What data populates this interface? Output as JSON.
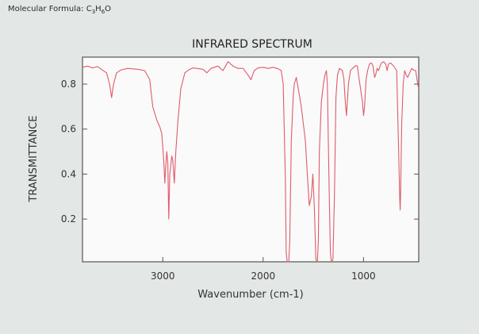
{
  "header": {
    "formula_prefix": "Molecular Formula: C",
    "c_count": "3",
    "h_mid": "H",
    "h_count": "6",
    "o_suffix": "O"
  },
  "chart_data": {
    "type": "line",
    "title": "INFRARED SPECTRUM",
    "xlabel": "Wavenumber (cm-1)",
    "ylabel": "TRANSMITTANCE",
    "xlim": [
      3800,
      450
    ],
    "ylim": [
      0.01,
      0.92
    ],
    "xticks": [
      3000,
      2000,
      1000
    ],
    "yticks": [
      0.2,
      0.4,
      0.6,
      0.8
    ],
    "grid": false,
    "series": [
      {
        "color": "#e05a6a",
        "points": [
          [
            3800,
            0.875
          ],
          [
            3750,
            0.88
          ],
          [
            3700,
            0.872
          ],
          [
            3650,
            0.878
          ],
          [
            3600,
            0.862
          ],
          [
            3560,
            0.85
          ],
          [
            3530,
            0.8
          ],
          [
            3510,
            0.74
          ],
          [
            3490,
            0.8
          ],
          [
            3460,
            0.85
          ],
          [
            3420,
            0.862
          ],
          [
            3350,
            0.87
          ],
          [
            3250,
            0.866
          ],
          [
            3180,
            0.86
          ],
          [
            3130,
            0.82
          ],
          [
            3100,
            0.7
          ],
          [
            3060,
            0.64
          ],
          [
            3030,
            0.61
          ],
          [
            3010,
            0.58
          ],
          [
            2990,
            0.46
          ],
          [
            2980,
            0.36
          ],
          [
            2970,
            0.44
          ],
          [
            2960,
            0.5
          ],
          [
            2950,
            0.45
          ],
          [
            2940,
            0.2
          ],
          [
            2930,
            0.4
          ],
          [
            2910,
            0.48
          ],
          [
            2900,
            0.46
          ],
          [
            2885,
            0.36
          ],
          [
            2870,
            0.5
          ],
          [
            2850,
            0.63
          ],
          [
            2820,
            0.78
          ],
          [
            2780,
            0.85
          ],
          [
            2740,
            0.864
          ],
          [
            2700,
            0.872
          ],
          [
            2600,
            0.866
          ],
          [
            2560,
            0.85
          ],
          [
            2520,
            0.87
          ],
          [
            2450,
            0.88
          ],
          [
            2400,
            0.86
          ],
          [
            2350,
            0.9
          ],
          [
            2300,
            0.88
          ],
          [
            2250,
            0.87
          ],
          [
            2200,
            0.87
          ],
          [
            2150,
            0.84
          ],
          [
            2120,
            0.82
          ],
          [
            2090,
            0.86
          ],
          [
            2050,
            0.872
          ],
          [
            2000,
            0.875
          ],
          [
            1950,
            0.87
          ],
          [
            1900,
            0.875
          ],
          [
            1850,
            0.868
          ],
          [
            1820,
            0.86
          ],
          [
            1800,
            0.8
          ],
          [
            1780,
            0.4
          ],
          [
            1770,
            0.05
          ],
          [
            1760,
            0.01
          ],
          [
            1745,
            0.01
          ],
          [
            1735,
            0.1
          ],
          [
            1720,
            0.55
          ],
          [
            1700,
            0.75
          ],
          [
            1690,
            0.8
          ],
          [
            1670,
            0.83
          ],
          [
            1650,
            0.78
          ],
          [
            1620,
            0.7
          ],
          [
            1580,
            0.55
          ],
          [
            1560,
            0.4
          ],
          [
            1540,
            0.26
          ],
          [
            1520,
            0.3
          ],
          [
            1505,
            0.4
          ],
          [
            1490,
            0.25
          ],
          [
            1475,
            0.02
          ],
          [
            1460,
            0.01
          ],
          [
            1450,
            0.1
          ],
          [
            1440,
            0.5
          ],
          [
            1420,
            0.72
          ],
          [
            1400,
            0.8
          ],
          [
            1385,
            0.84
          ],
          [
            1370,
            0.86
          ],
          [
            1360,
            0.8
          ],
          [
            1345,
            0.4
          ],
          [
            1330,
            0.05
          ],
          [
            1320,
            0.01
          ],
          [
            1305,
            0.02
          ],
          [
            1290,
            0.3
          ],
          [
            1275,
            0.74
          ],
          [
            1260,
            0.84
          ],
          [
            1240,
            0.87
          ],
          [
            1210,
            0.86
          ],
          [
            1195,
            0.82
          ],
          [
            1185,
            0.74
          ],
          [
            1170,
            0.66
          ],
          [
            1150,
            0.8
          ],
          [
            1130,
            0.86
          ],
          [
            1110,
            0.87
          ],
          [
            1080,
            0.882
          ],
          [
            1060,
            0.88
          ],
          [
            1050,
            0.84
          ],
          [
            1030,
            0.78
          ],
          [
            1010,
            0.72
          ],
          [
            1000,
            0.66
          ],
          [
            990,
            0.7
          ],
          [
            975,
            0.82
          ],
          [
            960,
            0.86
          ],
          [
            940,
            0.89
          ],
          [
            920,
            0.894
          ],
          [
            905,
            0.88
          ],
          [
            890,
            0.83
          ],
          [
            880,
            0.84
          ],
          [
            865,
            0.87
          ],
          [
            850,
            0.86
          ],
          [
            835,
            0.88
          ],
          [
            820,
            0.895
          ],
          [
            800,
            0.9
          ],
          [
            780,
            0.89
          ],
          [
            765,
            0.86
          ],
          [
            750,
            0.89
          ],
          [
            730,
            0.894
          ],
          [
            700,
            0.88
          ],
          [
            670,
            0.86
          ],
          [
            650,
            0.5
          ],
          [
            640,
            0.3
          ],
          [
            635,
            0.24
          ],
          [
            630,
            0.32
          ],
          [
            620,
            0.62
          ],
          [
            605,
            0.8
          ],
          [
            590,
            0.86
          ],
          [
            575,
            0.84
          ],
          [
            560,
            0.83
          ],
          [
            540,
            0.85
          ],
          [
            520,
            0.87
          ],
          [
            500,
            0.862
          ],
          [
            480,
            0.86
          ],
          [
            460,
            0.8
          ],
          [
            450,
            0.78
          ]
        ]
      }
    ]
  }
}
